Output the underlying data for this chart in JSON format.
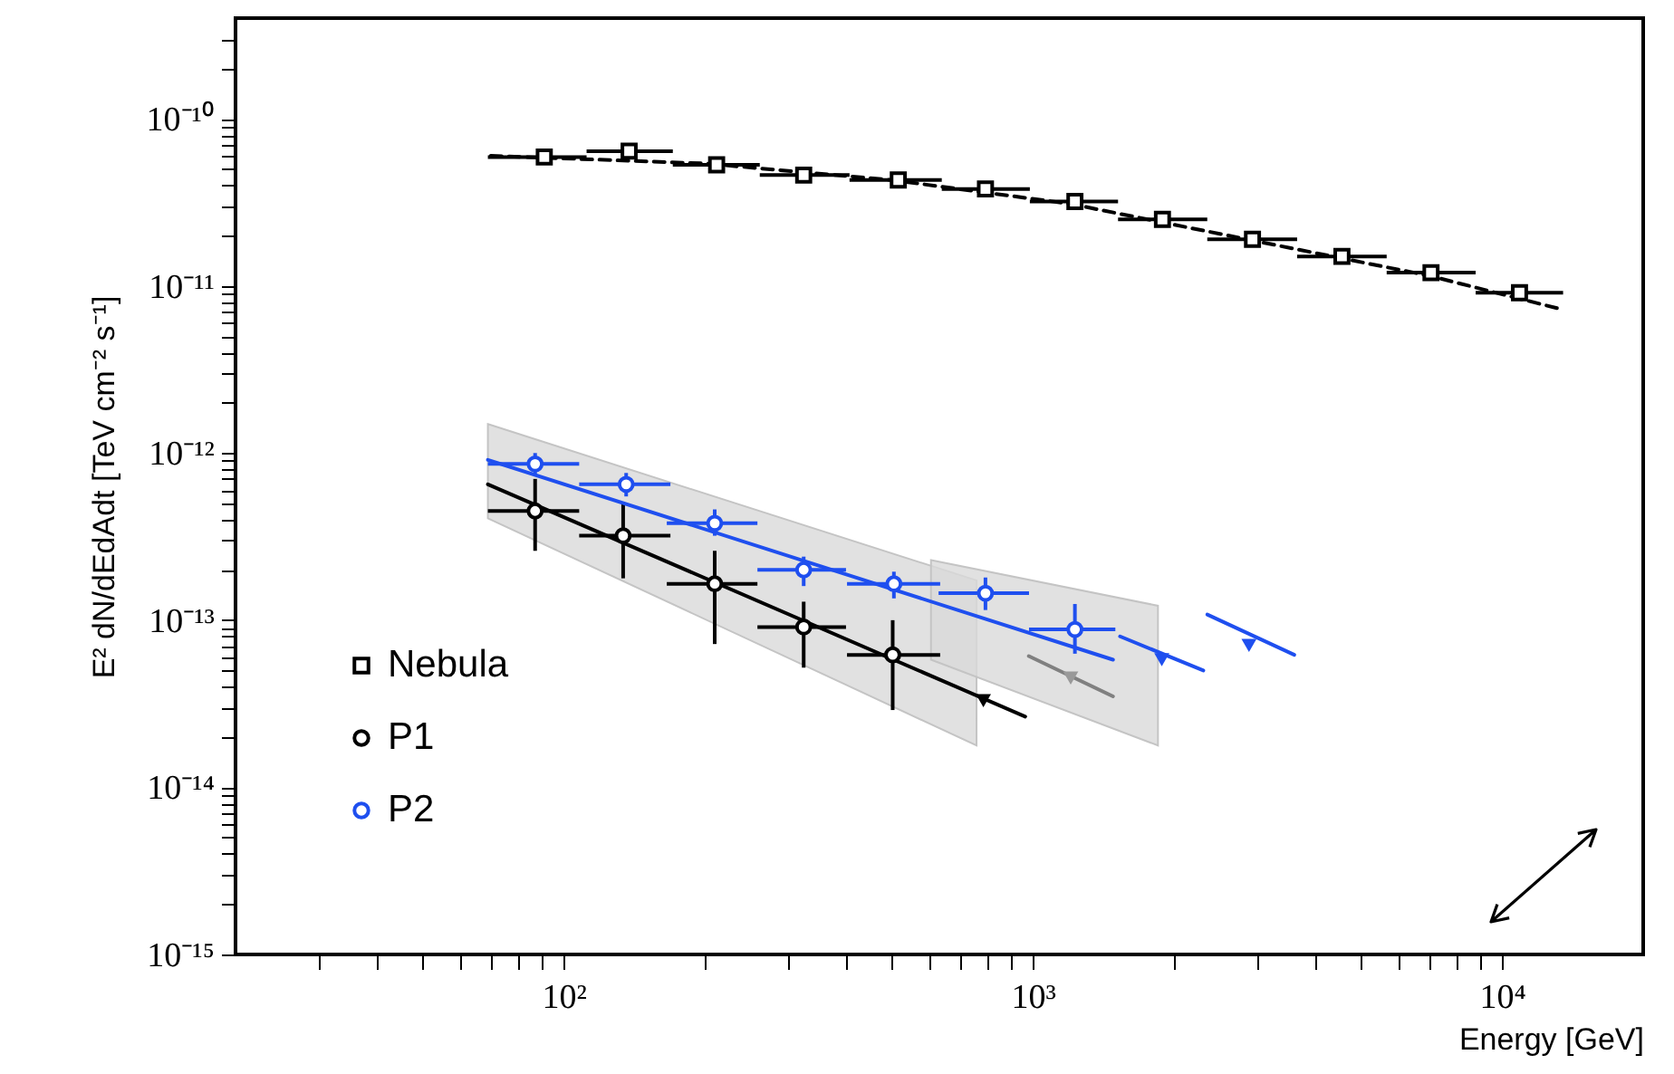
{
  "chart_data": {
    "type": "scatter",
    "xlabel": "Energy [GeV]",
    "ylabel": "E² dN/dEdAdt [TeV cm⁻² s⁻¹]",
    "log": "xy",
    "legend": "bottom left",
    "xlim": [
      20,
      20000
    ],
    "ylim": [
      1e-15,
      4e-10
    ],
    "xticks": [
      {
        "value": 30,
        "label": null
      },
      {
        "value": 40,
        "label": null
      },
      {
        "value": 50,
        "label": null
      },
      {
        "value": 60,
        "label": null
      },
      {
        "value": 70,
        "label": null
      },
      {
        "value": 80,
        "label": null
      },
      {
        "value": 90,
        "label": null
      },
      {
        "value": 100,
        "label": "10²"
      },
      {
        "value": 200,
        "label": null
      },
      {
        "value": 300,
        "label": null
      },
      {
        "value": 400,
        "label": null
      },
      {
        "value": 500,
        "label": null
      },
      {
        "value": 600,
        "label": null
      },
      {
        "value": 700,
        "label": null
      },
      {
        "value": 800,
        "label": null
      },
      {
        "value": 900,
        "label": null
      },
      {
        "value": 1000,
        "label": "10³"
      },
      {
        "value": 2000,
        "label": null
      },
      {
        "value": 3000,
        "label": null
      },
      {
        "value": 4000,
        "label": null
      },
      {
        "value": 5000,
        "label": null
      },
      {
        "value": 6000,
        "label": null
      },
      {
        "value": 7000,
        "label": null
      },
      {
        "value": 8000,
        "label": null
      },
      {
        "value": 9000,
        "label": null
      },
      {
        "value": 10000,
        "label": "10⁴"
      }
    ],
    "yticks": [
      {
        "value": 1e-15,
        "label": "10⁻¹⁵"
      },
      {
        "value": 2e-15,
        "label": null
      },
      {
        "value": 3e-15,
        "label": null
      },
      {
        "value": 4e-15,
        "label": null
      },
      {
        "value": 5e-15,
        "label": null
      },
      {
        "value": 6e-15,
        "label": null
      },
      {
        "value": 7e-15,
        "label": null
      },
      {
        "value": 8e-15,
        "label": null
      },
      {
        "value": 9e-15,
        "label": null
      },
      {
        "value": 1e-14,
        "label": "10⁻¹⁴"
      },
      {
        "value": 2e-14,
        "label": null
      },
      {
        "value": 3e-14,
        "label": null
      },
      {
        "value": 4e-14,
        "label": null
      },
      {
        "value": 5e-14,
        "label": null
      },
      {
        "value": 6e-14,
        "label": null
      },
      {
        "value": 7e-14,
        "label": null
      },
      {
        "value": 8e-14,
        "label": null
      },
      {
        "value": 9e-14,
        "label": null
      },
      {
        "value": 1e-13,
        "label": "10⁻¹³"
      },
      {
        "value": 2e-13,
        "label": null
      },
      {
        "value": 3e-13,
        "label": null
      },
      {
        "value": 4e-13,
        "label": null
      },
      {
        "value": 5e-13,
        "label": null
      },
      {
        "value": 6e-13,
        "label": null
      },
      {
        "value": 7e-13,
        "label": null
      },
      {
        "value": 8e-13,
        "label": null
      },
      {
        "value": 9e-13,
        "label": null
      },
      {
        "value": 1e-12,
        "label": "10⁻¹²"
      },
      {
        "value": 2e-12,
        "label": null
      },
      {
        "value": 3e-12,
        "label": null
      },
      {
        "value": 4e-12,
        "label": null
      },
      {
        "value": 5e-12,
        "label": null
      },
      {
        "value": 6e-12,
        "label": null
      },
      {
        "value": 7e-12,
        "label": null
      },
      {
        "value": 8e-12,
        "label": null
      },
      {
        "value": 9e-12,
        "label": null
      },
      {
        "value": 1e-11,
        "label": "10⁻¹¹"
      },
      {
        "value": 2e-11,
        "label": null
      },
      {
        "value": 3e-11,
        "label": null
      },
      {
        "value": 4e-11,
        "label": null
      },
      {
        "value": 5e-11,
        "label": null
      },
      {
        "value": 6e-11,
        "label": null
      },
      {
        "value": 7e-11,
        "label": null
      },
      {
        "value": 8e-11,
        "label": null
      },
      {
        "value": 9e-11,
        "label": null
      },
      {
        "value": 1e-10,
        "label": "10⁻¹⁰"
      },
      {
        "value": 2e-10,
        "label": null
      },
      {
        "value": 3e-10,
        "label": null
      }
    ],
    "series": [
      {
        "type": "line",
        "color": "#d9d9d9",
        "x": [
          69,
          759
        ],
        "values": [
          null,
          null
        ],
        "upper": [
          1.49e-12,
          1.73e-13
        ],
        "lower": [
          4.07e-13,
          1.78e-14
        ]
      },
      {
        "type": "line",
        "color": "#d9d9d9",
        "x": [
          607,
          1849
        ],
        "values": [
          null,
          null
        ],
        "upper": [
          2.29e-13,
          1.22e-13
        ],
        "lower": [
          5.8e-14,
          1.78e-14
        ]
      },
      {
        "type": "line",
        "color": "#000000",
        "line_style": "dashed",
        "x": [
          70,
          200,
          500,
          1200,
          3000,
          7000,
          13500
        ],
        "values": [
          6e-11,
          5.4e-11,
          4.3e-11,
          3.1e-11,
          1.85e-11,
          1.15e-11,
          7.2e-12
        ]
      },
      {
        "name": "Nebula",
        "marker": "square",
        "color": "#000000",
        "x": [
          91,
          138,
          212,
          325,
          517,
          793,
          1230,
          1890,
          2940,
          4560,
          7060,
          10900
        ],
        "values": [
          5.9e-11,
          6.4e-11,
          5.3e-11,
          4.6e-11,
          4.3e-11,
          3.8e-11,
          3.2e-11,
          2.5e-11,
          1.9e-11,
          1.5e-11,
          1.2e-11,
          9.1e-12
        ],
        "xerrors": [
          [
            69,
            112
          ],
          [
            112,
            171
          ],
          [
            171,
            262
          ],
          [
            262,
            407
          ],
          [
            407,
            640
          ],
          [
            640,
            986
          ],
          [
            986,
            1520
          ],
          [
            1520,
            2355
          ],
          [
            2355,
            3660
          ],
          [
            3660,
            5680
          ],
          [
            5680,
            8790
          ],
          [
            8790,
            13500
          ]
        ]
      },
      {
        "type": "line",
        "color": "#000000",
        "x": [
          69,
          964
        ],
        "values": [
          6.5e-13,
          2.65e-14
        ]
      },
      {
        "name": "P1",
        "marker": "circle",
        "color": "#000000",
        "x": [
          87,
          134,
          210,
          325,
          503
        ],
        "values": [
          4.5e-13,
          3.2e-13,
          1.65e-13,
          9.1e-14,
          6.2e-14
        ],
        "errors": [
          [
            2.6e-13,
            7e-13
          ],
          [
            1.78e-13,
            5.1e-13
          ],
          [
            7.2e-14,
            2.6e-13
          ],
          [
            5.2e-14,
            1.29e-13
          ],
          [
            2.9e-14,
            1e-13
          ]
        ],
        "xerrors": [
          [
            69,
            108
          ],
          [
            108,
            169
          ],
          [
            166,
            259
          ],
          [
            259,
            400
          ],
          [
            402,
            635
          ]
        ]
      },
      {
        "marker": "triangle",
        "color": "#000000",
        "x": [
          785
        ],
        "values": [
          3.3e-14
        ]
      },
      {
        "type": "line",
        "color": "#808080",
        "x": [
          981,
          1483
        ],
        "values": [
          6.1e-14,
          3.5e-14
        ]
      },
      {
        "marker": "triangle",
        "color": "#999999",
        "x": [
          1205
        ],
        "values": [
          4.5e-14
        ]
      },
      {
        "type": "line",
        "color": "#1f4fef",
        "x": [
          69,
          1483
        ],
        "values": [
          9.1e-13,
          5.8e-14
        ]
      },
      {
        "name": "P2",
        "marker": "circle",
        "color": "#1f4fef",
        "x": [
          87,
          136,
          210,
          325,
          506,
          793,
          1230
        ],
        "values": [
          8.6e-13,
          6.5e-13,
          3.8e-13,
          2e-13,
          1.65e-13,
          1.45e-13,
          8.8e-14
        ],
        "errors": [
          [
            7.4e-13,
            1e-12
          ],
          [
            5.5e-13,
            7.6e-13
          ],
          [
            3.2e-13,
            4.6e-13
          ],
          [
            1.6e-13,
            2.4e-13
          ],
          [
            1.35e-13,
            1.95e-13
          ],
          [
            1.15e-13,
            1.8e-13
          ],
          [
            6.3e-14,
            1.25e-13
          ]
        ],
        "xerrors": [
          [
            69,
            108
          ],
          [
            108,
            169
          ],
          [
            166,
            259
          ],
          [
            259,
            400
          ],
          [
            402,
            635
          ],
          [
            630,
            982
          ],
          [
            982,
            1500
          ]
        ]
      },
      {
        "type": "line",
        "color": "#1f4fef",
        "x": [
          1535,
          2310
        ],
        "values": [
          8e-14,
          5e-14
        ]
      },
      {
        "type": "line",
        "color": "#1f4fef",
        "x": [
          2355,
          3610
        ],
        "values": [
          1.08e-13,
          6.2e-14
        ]
      },
      {
        "marker": "triangle",
        "color": "#1f4fef",
        "x": [
          1884,
          2890
        ],
        "values": [
          5.8e-14,
          7.05e-14
        ]
      }
    ]
  }
}
